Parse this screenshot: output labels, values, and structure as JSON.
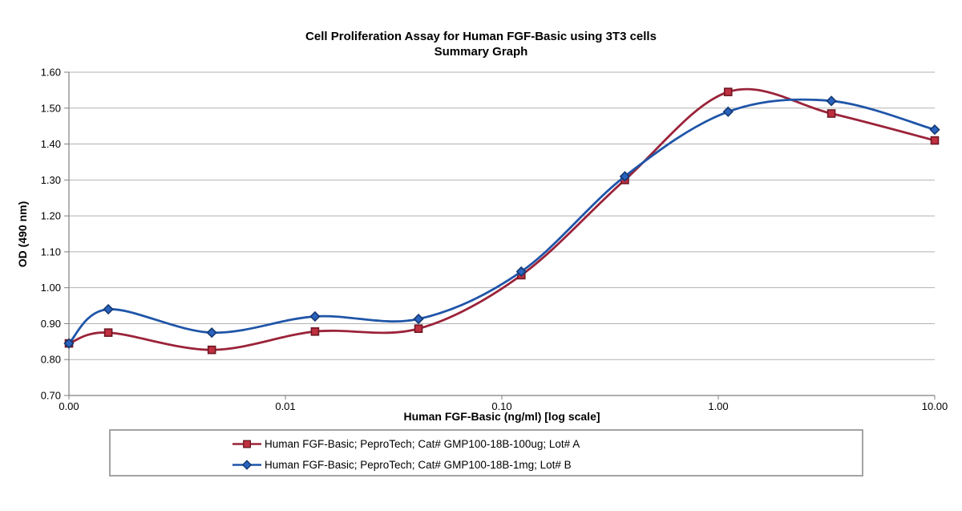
{
  "chart_data": {
    "type": "line",
    "title": "Cell Proliferation Assay for Human FGF-Basic using 3T3 cells",
    "subtitle": "Summary Graph",
    "xlabel": "Human FGF-Basic (ng/ml) [log scale]",
    "ylabel": "OD (490 nm)",
    "x_scale": "log",
    "x_min_decade": 0.001,
    "x_max_decade": 10,
    "ylim": [
      0.7,
      1.6
    ],
    "grid": "horizontal",
    "line_smoothing": true,
    "legend_position": "bottom-box",
    "x": [
      0,
      0.00152,
      0.00457,
      0.0137,
      0.0412,
      0.123,
      0.37,
      1.11,
      3.33,
      10
    ],
    "x_tick_values": [
      0.001,
      0.01,
      0.1,
      1,
      10
    ],
    "x_tick_labels": [
      "0.00",
      "0.01",
      "0.10",
      "1.00",
      "10.00"
    ],
    "y_tick_values": [
      0.7,
      0.8,
      0.9,
      1.0,
      1.1,
      1.2,
      1.3,
      1.4,
      1.5,
      1.6
    ],
    "y_tick_labels": [
      "0.70",
      "0.80",
      "0.90",
      "1.00",
      "1.10",
      "1.20",
      "1.30",
      "1.40",
      "1.50",
      "1.60"
    ],
    "series": [
      {
        "name": "Human FGF-Basic; PeproTech; Cat# GMP100-18B-100ug; Lot# A",
        "marker": "square",
        "line_color": "#9b2339",
        "marker_fill": "#c03041",
        "marker_stroke": "#6e1723",
        "values": [
          0.845,
          0.875,
          0.827,
          0.878,
          0.886,
          1.035,
          1.3,
          1.545,
          1.485,
          1.41
        ]
      },
      {
        "name": "Human FGF-Basic; PeproTech; Cat# GMP100-18B-1mg; Lot# B",
        "marker": "diamond",
        "line_color": "#1f55a8",
        "marker_fill": "#2a63bf",
        "marker_stroke": "#143871",
        "values": [
          0.845,
          0.94,
          0.875,
          0.92,
          0.913,
          1.045,
          1.31,
          1.49,
          1.52,
          1.44
        ]
      }
    ]
  },
  "colors": {
    "background": "#ffffff",
    "gridline": "#b2b2b2",
    "axis": "#7f7f7f",
    "text": "#000000",
    "legend_border": "#a3a3a3"
  }
}
